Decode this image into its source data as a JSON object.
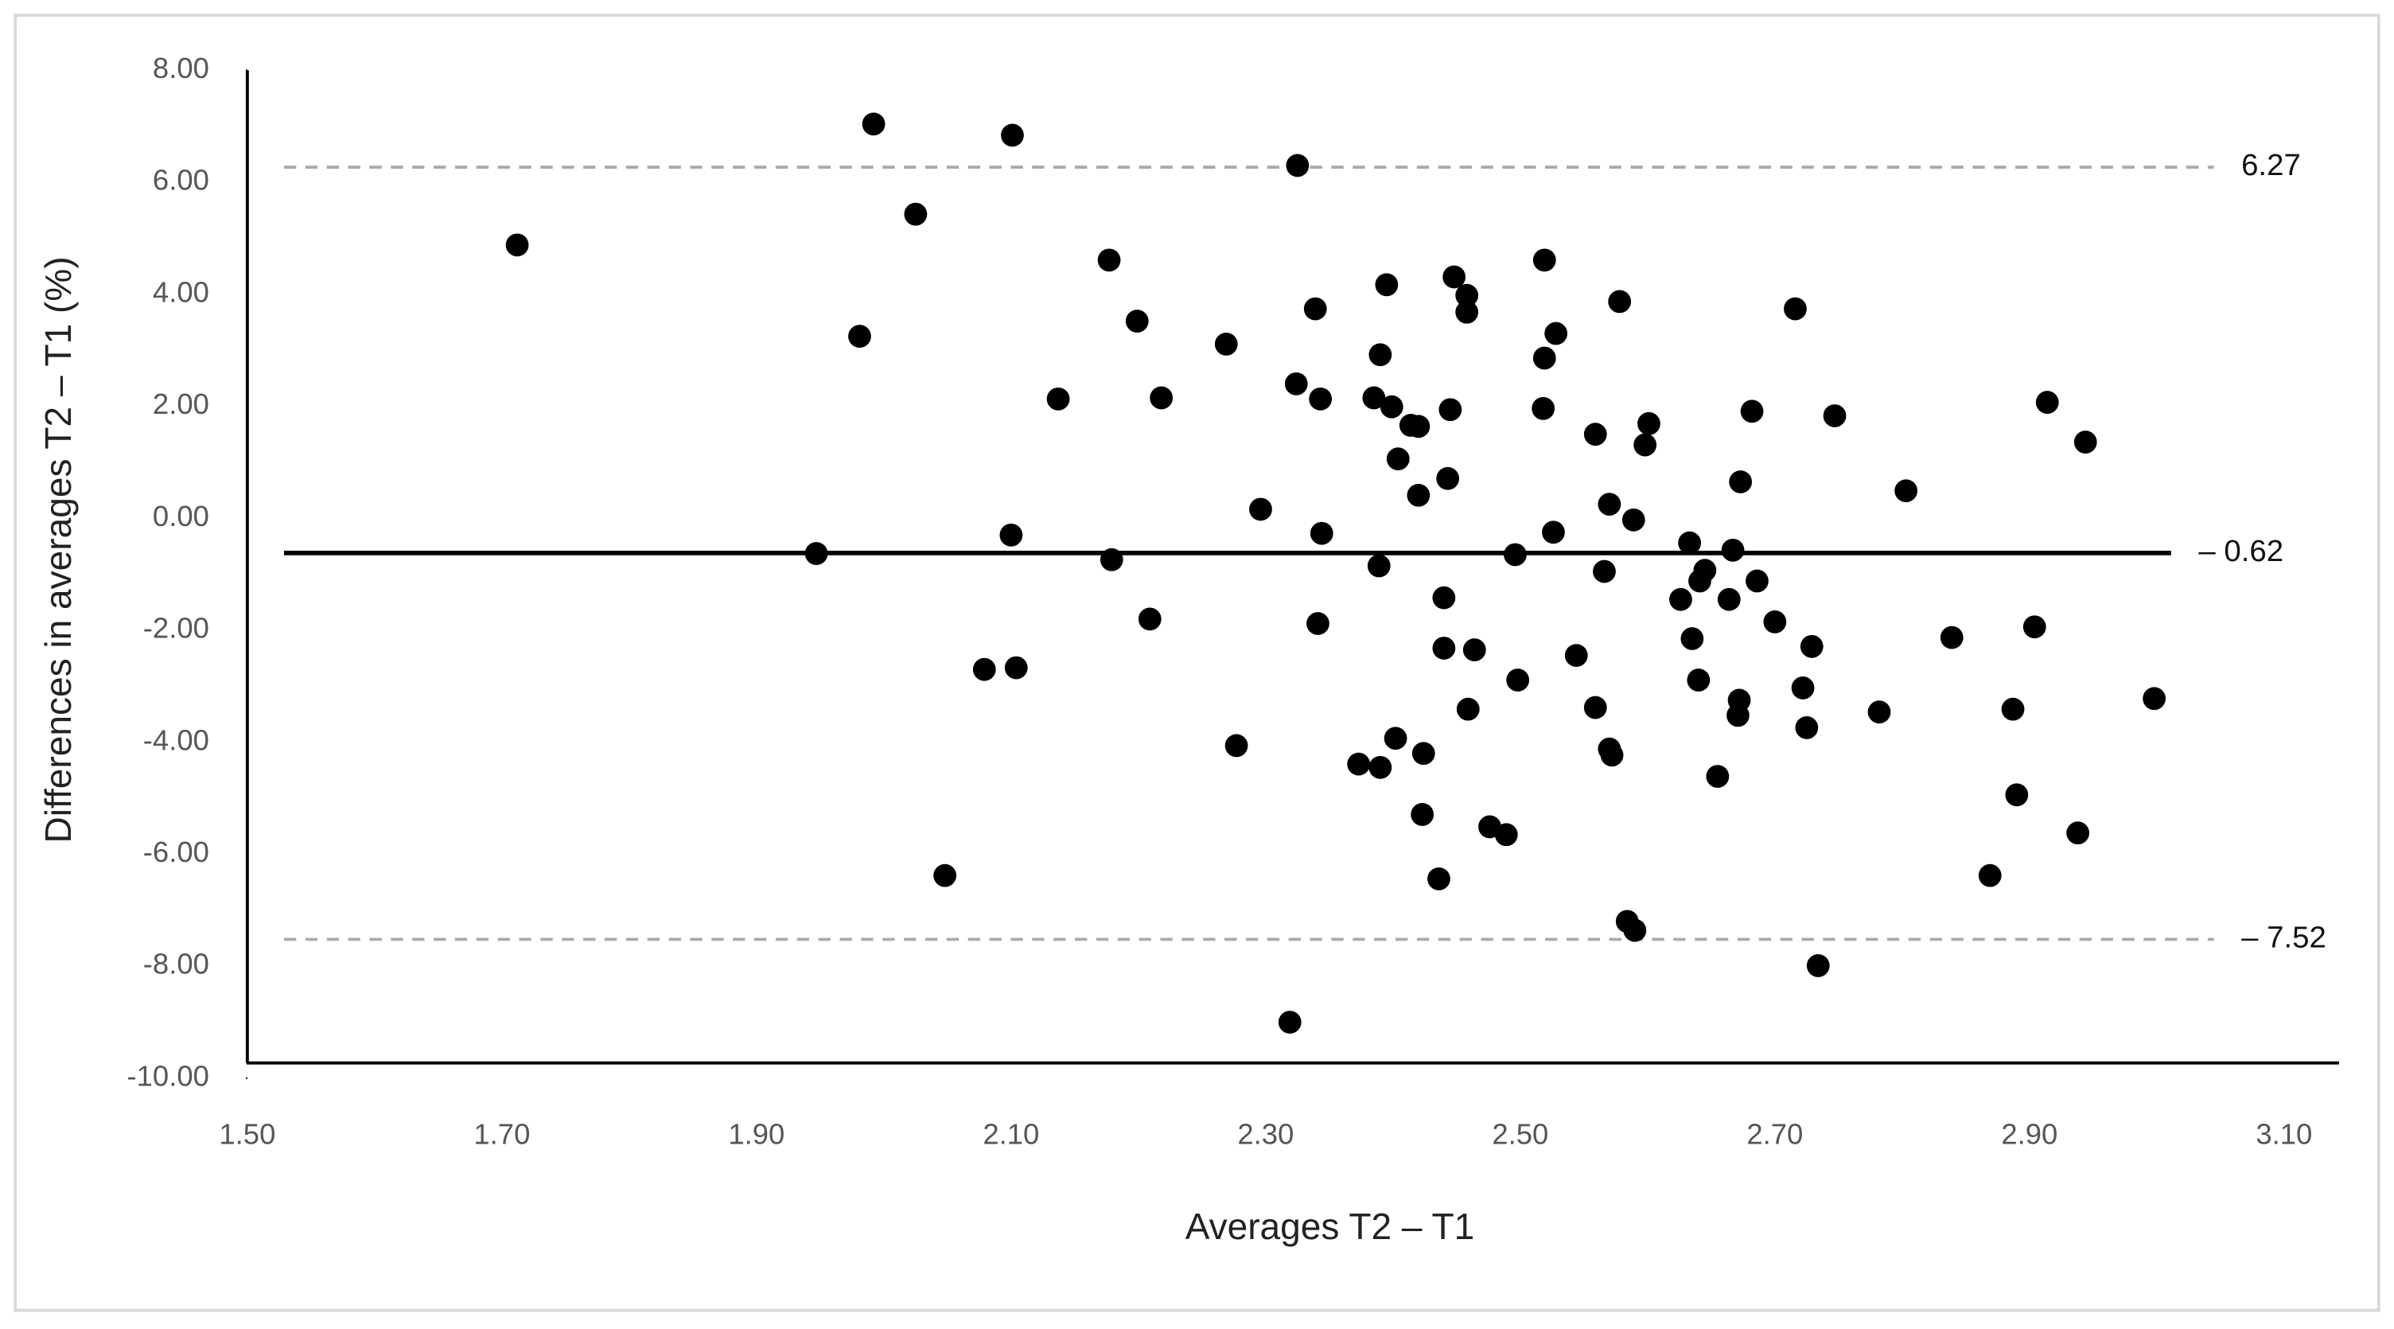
{
  "chart_data": {
    "type": "scatter",
    "x_label": "Averages T2 – T1",
    "y_label": "Differences in averages T2 – T1 (%)",
    "color": "#000000",
    "x": [
      1.712,
      1.992,
      2.101,
      2.325,
      2.025,
      1.981,
      1.947,
      2.048,
      2.079,
      2.104,
      2.1,
      2.137,
      2.177,
      2.199,
      2.218,
      2.179,
      2.209,
      2.269,
      2.277,
      2.296,
      2.319,
      2.324,
      2.339,
      2.343,
      2.344,
      2.341,
      2.373,
      2.39,
      2.389,
      2.385,
      2.39,
      2.395,
      2.399,
      2.404,
      2.414,
      2.42,
      2.42,
      2.402,
      2.424,
      2.423,
      2.436,
      2.44,
      2.44,
      2.443,
      2.445,
      2.448,
      2.458,
      2.458,
      2.464,
      2.459,
      2.476,
      2.489,
      2.496,
      2.498,
      2.518,
      2.519,
      2.519,
      2.528,
      2.526,
      2.544,
      2.559,
      2.559,
      2.566,
      2.57,
      2.57,
      2.572,
      2.578,
      2.584,
      2.59,
      2.589,
      2.598,
      2.601,
      2.626,
      2.633,
      2.635,
      2.64,
      2.641,
      2.645,
      2.655,
      2.664,
      2.667,
      2.671,
      2.672,
      2.673,
      2.682,
      2.686,
      2.7,
      2.716,
      2.722,
      2.725,
      2.729,
      2.734,
      2.747,
      2.782,
      2.803,
      2.839,
      2.869,
      2.887,
      2.89,
      2.904,
      2.914,
      2.938,
      2.944,
      2.998
    ],
    "values": [
      4.88,
      7.04,
      6.84,
      6.3,
      5.43,
      3.25,
      -0.63,
      -6.38,
      -2.7,
      -2.67,
      -0.3,
      2.13,
      4.61,
      3.52,
      2.15,
      -0.74,
      -1.8,
      3.11,
      -4.06,
      0.16,
      -9.0,
      2.4,
      3.74,
      2.13,
      -0.27,
      -1.88,
      -4.39,
      -4.45,
      -0.85,
      2.15,
      2.92,
      4.17,
      1.99,
      1.06,
      1.66,
      1.64,
      0.41,
      -3.93,
      -4.2,
      -5.29,
      -6.44,
      -2.32,
      -1.42,
      0.71,
      1.94,
      4.31,
      3.98,
      3.68,
      -2.35,
      -3.41,
      -5.51,
      -5.65,
      -0.65,
      -2.89,
      1.96,
      2.86,
      4.61,
      3.3,
      -0.25,
      -2.45,
      1.5,
      -3.38,
      -0.95,
      0.25,
      -4.12,
      -4.23,
      3.87,
      -7.2,
      -7.36,
      -0.03,
      1.31,
      1.69,
      -1.45,
      -0.44,
      -2.15,
      -2.89,
      -1.12,
      -0.93,
      -4.61,
      -1.45,
      -0.57,
      -3.52,
      -3.25,
      0.65,
      1.91,
      -1.12,
      -1.85,
      3.74,
      -3.03,
      -3.74,
      -2.29,
      -7.99,
      1.83,
      -3.46,
      0.49,
      -2.13,
      -6.38,
      -3.41,
      -4.94,
      -1.94,
      2.07,
      -5.62,
      1.36,
      -3.22
    ],
    "xlim": [
      1.5,
      3.1
    ],
    "ylim": [
      -10,
      8
    ],
    "xticks": [
      {
        "value": 1.5,
        "label": "1.50"
      },
      {
        "value": 1.7,
        "label": "1.70"
      },
      {
        "value": 1.9,
        "label": "1.90"
      },
      {
        "value": 2.1,
        "label": "2.10"
      },
      {
        "value": 2.3,
        "label": "2.30"
      },
      {
        "value": 2.5,
        "label": "2.50"
      },
      {
        "value": 2.7,
        "label": "2.70"
      },
      {
        "value": 2.9,
        "label": "2.90"
      },
      {
        "value": 3.1,
        "label": "3.10"
      }
    ],
    "yticks": [
      {
        "value": 8,
        "label": "8.00"
      },
      {
        "value": 6,
        "label": "6.00"
      },
      {
        "value": 4,
        "label": "4.00"
      },
      {
        "value": 2,
        "label": "2.00"
      },
      {
        "value": 0,
        "label": "0.00"
      },
      {
        "value": -2,
        "label": "-2.00"
      },
      {
        "value": -4,
        "label": "-4.00"
      },
      {
        "value": -6,
        "label": "-6.00"
      },
      {
        "value": -8,
        "label": "-8.00"
      },
      {
        "value": -10,
        "label": "-10.00"
      }
    ],
    "reference_lines": [
      {
        "value": 6.27,
        "label": "6.27",
        "style": "dashed",
        "color": "#aaaaaa"
      },
      {
        "value": -0.62,
        "label": "– 0.62",
        "style": "solid",
        "color": "#000000"
      },
      {
        "value": -7.52,
        "label": "– 7.52",
        "style": "dashed",
        "color": "#aaaaaa"
      }
    ]
  }
}
